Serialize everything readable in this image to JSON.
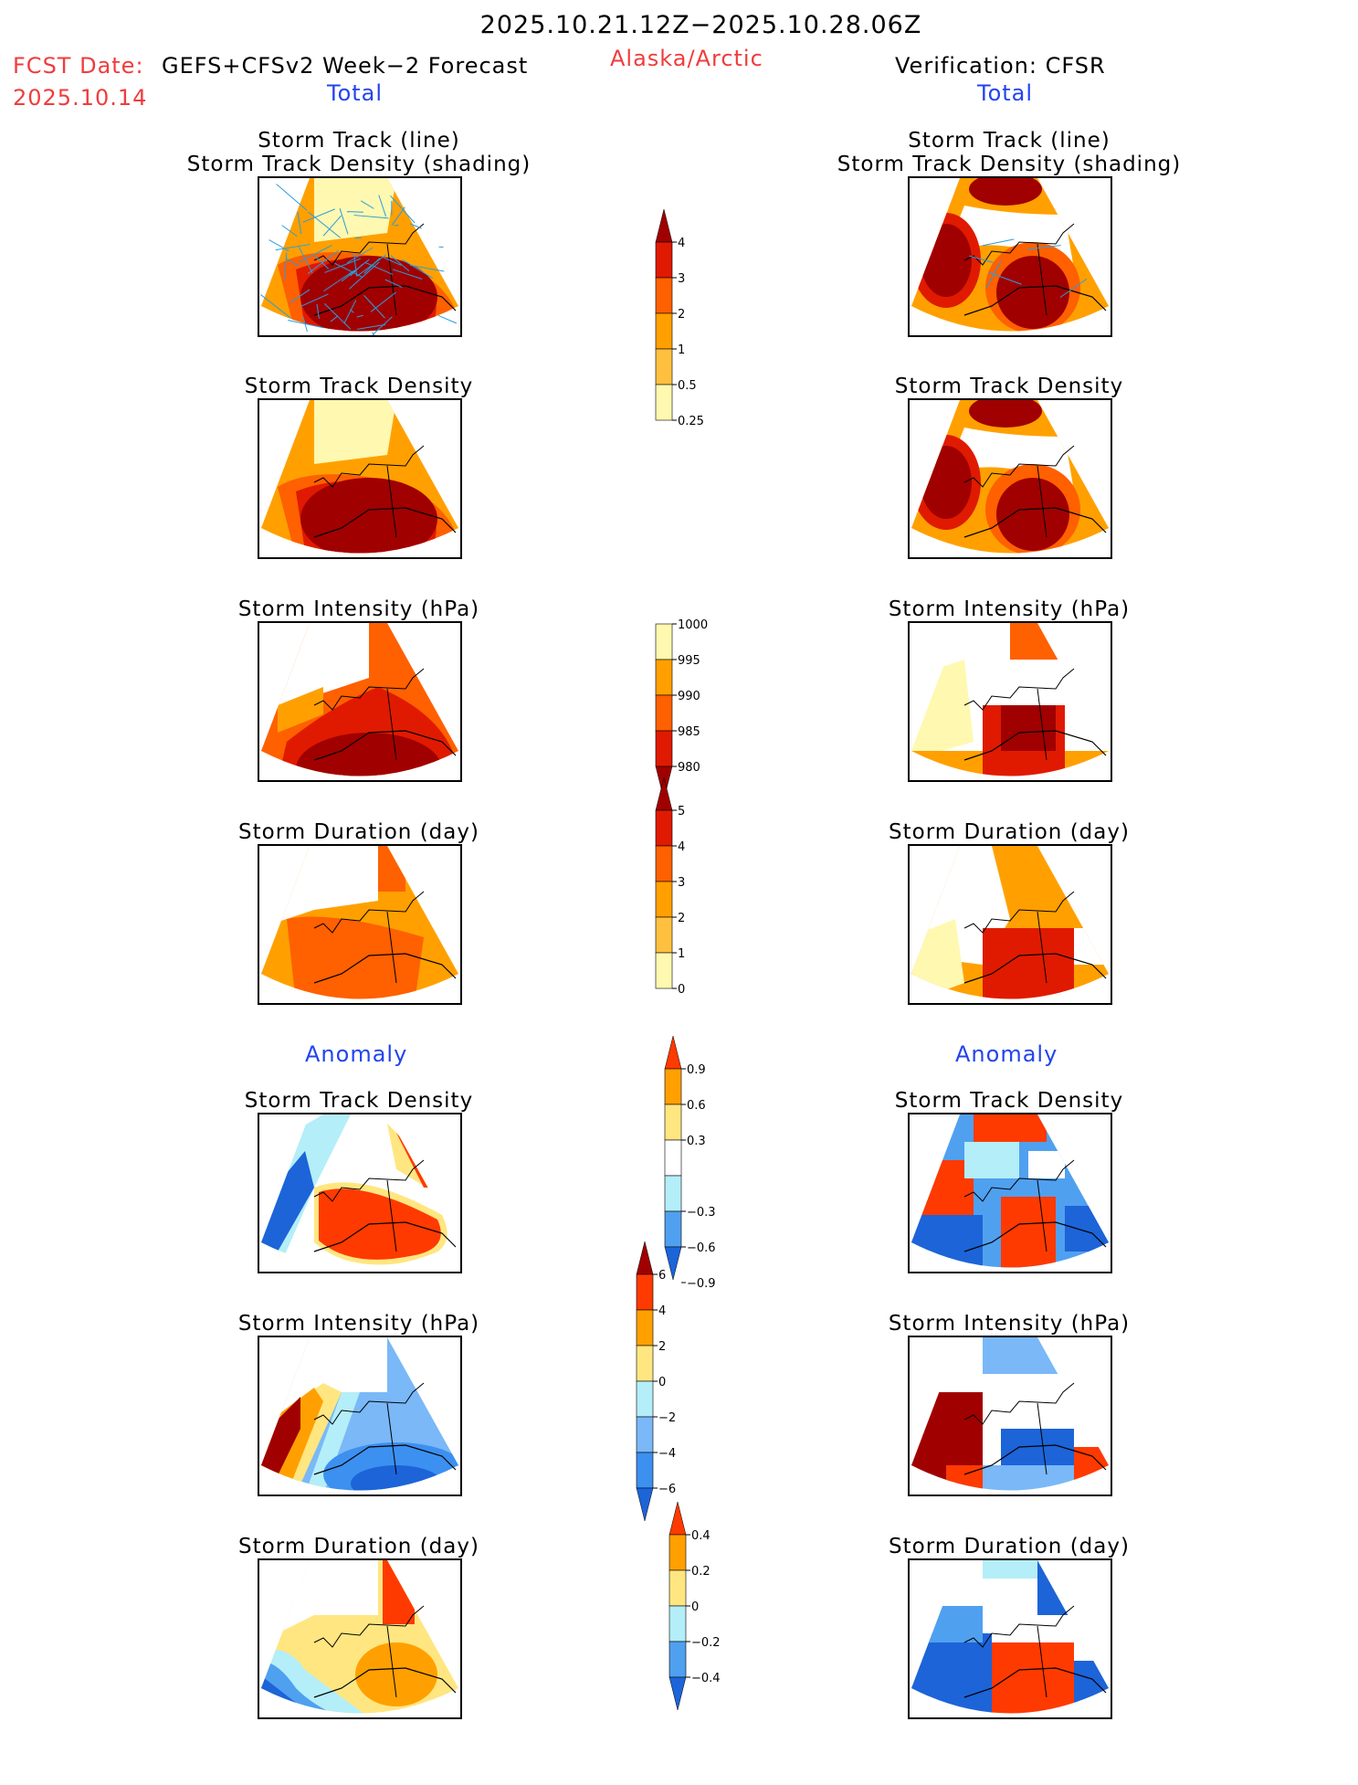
{
  "header": {
    "valid_period": "2025.10.21.12Z−2025.10.28.06Z",
    "fcst_label": "FCST Date:",
    "model": "GEFS+CFSv2 Week−2 Forecast",
    "fcst_date": "2025.10.14",
    "region": "Alaska/Arctic",
    "verification": "Verification: CFSR",
    "left_section": "Total",
    "right_section": "Total",
    "anomaly_left": "Anomaly",
    "anomaly_right": "Anomaly"
  },
  "colors": {
    "title_red": "#f03c3c",
    "section_blue": "#2244ee"
  },
  "chart_data": [
    {
      "type": "heatmap",
      "id": "fcst-track",
      "column": "forecast",
      "title_line1": "Storm Track (line)",
      "title_line2": "Storm Track Density (shading)",
      "pattern": "max-south",
      "overlay": "dense-tracks",
      "scale": "density"
    },
    {
      "type": "heatmap",
      "id": "ver-track",
      "column": "verification",
      "title_line1": "Storm Track (line)",
      "title_line2": "Storm Track Density (shading)",
      "pattern": "two-lobes",
      "overlay": "sparse-tracks",
      "scale": "density"
    },
    {
      "type": "heatmap",
      "id": "fcst-density",
      "column": "forecast",
      "title_line1": "Storm Track Density",
      "pattern": "max-south",
      "scale": "density"
    },
    {
      "type": "heatmap",
      "id": "ver-density",
      "column": "verification",
      "title_line1": "Storm Track Density",
      "pattern": "two-lobes",
      "scale": "density"
    },
    {
      "type": "heatmap",
      "id": "fcst-intensity",
      "column": "forecast",
      "title_line1": "Storm Intensity (hPa)",
      "pattern": "intensity-fcst",
      "scale": "intensity"
    },
    {
      "type": "heatmap",
      "id": "ver-intensity",
      "column": "verification",
      "title_line1": "Storm Intensity (hPa)",
      "pattern": "intensity-ver",
      "scale": "intensity"
    },
    {
      "type": "heatmap",
      "id": "fcst-duration",
      "column": "forecast",
      "title_line1": "Storm Duration (day)",
      "pattern": "duration-fcst",
      "scale": "duration"
    },
    {
      "type": "heatmap",
      "id": "ver-duration",
      "column": "verification",
      "title_line1": "Storm Duration (day)",
      "pattern": "duration-ver",
      "scale": "duration"
    },
    {
      "type": "heatmap",
      "id": "fcst-density-anom",
      "column": "forecast",
      "title_line1": "Storm Track Density",
      "pattern": "anom-density-fcst",
      "scale": "density_anom"
    },
    {
      "type": "heatmap",
      "id": "ver-density-anom",
      "column": "verification",
      "title_line1": "Storm Track Density",
      "pattern": "anom-density-ver",
      "scale": "density_anom"
    },
    {
      "type": "heatmap",
      "id": "fcst-intensity-anom",
      "column": "forecast",
      "title_line1": "Storm Intensity (hPa)",
      "pattern": "anom-intensity-fcst",
      "scale": "intensity_anom"
    },
    {
      "type": "heatmap",
      "id": "ver-intensity-anom",
      "column": "verification",
      "title_line1": "Storm Intensity (hPa)",
      "pattern": "anom-intensity-ver",
      "scale": "intensity_anom"
    },
    {
      "type": "heatmap",
      "id": "fcst-duration-anom",
      "column": "forecast",
      "title_line1": "Storm Duration (day)",
      "pattern": "anom-duration-fcst",
      "scale": "duration_anom"
    },
    {
      "type": "heatmap",
      "id": "ver-duration-anom",
      "column": "verification",
      "title_line1": "Storm Duration (day)",
      "pattern": "anom-duration-ver",
      "scale": "duration_anom"
    }
  ],
  "colorbars": {
    "density": {
      "ticks": [
        "4",
        "3",
        "2",
        "1",
        "0.5",
        "0.25"
      ],
      "colors": [
        "#a00000",
        "#e01a00",
        "#ff6000",
        "#ffa000",
        "#ffc040",
        "#fff8b0"
      ],
      "arrow_top": true,
      "arrow_bottom": false
    },
    "intensity": {
      "ticks": [
        "1000",
        "995",
        "990",
        "985",
        "980"
      ],
      "colors": [
        "#fff8b0",
        "#ffa000",
        "#ff6000",
        "#e01a00",
        "#a00000"
      ],
      "arrow_top": false,
      "arrow_bottom": true
    },
    "duration": {
      "ticks": [
        "5",
        "4",
        "3",
        "2",
        "1",
        "0"
      ],
      "colors": [
        "#a00000",
        "#e01a00",
        "#ff6000",
        "#ffa000",
        "#ffc040",
        "#fff8b0"
      ],
      "arrow_top": true,
      "arrow_bottom": false
    },
    "density_anom": {
      "ticks": [
        "0.9",
        "0.6",
        "0.3",
        "−0.3",
        "−0.6",
        "−0.9"
      ],
      "colors": [
        "#ff3a00",
        "#ffa000",
        "#ffe680",
        "#ffffff",
        "#b4eef8",
        "#50a0f0",
        "#1c64d8"
      ]
    },
    "intensity_anom": {
      "ticks": [
        "6",
        "4",
        "2",
        "0",
        "−2",
        "−4",
        "−6"
      ],
      "colors": [
        "#a00000",
        "#ff3a00",
        "#ffa000",
        "#ffe680",
        "#b4eef8",
        "#7ab8f8",
        "#3c90f0",
        "#1c64d8"
      ]
    },
    "duration_anom": {
      "ticks": [
        "0.4",
        "0.2",
        "0",
        "−0.2",
        "−0.4"
      ],
      "colors": [
        "#ff3a00",
        "#ffa000",
        "#ffe680",
        "#b4eef8",
        "#50a0f0",
        "#1c64d8"
      ]
    }
  }
}
